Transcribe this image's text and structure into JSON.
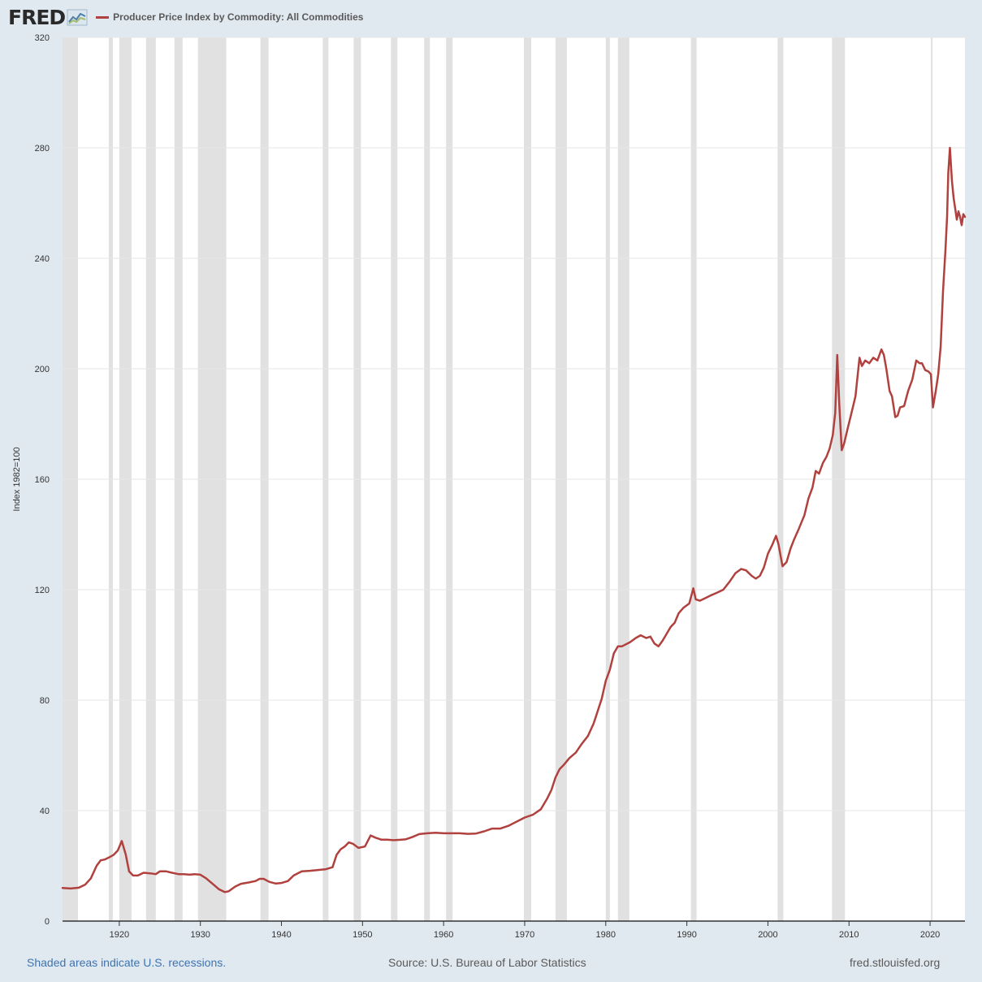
{
  "header": {
    "logo_text": "FRED",
    "logo_icon": "chart-line-icon",
    "series_title": "Producer Price Index by Commodity: All Commodities"
  },
  "footer": {
    "recession_note": "Shaded areas indicate U.S. recessions.",
    "source": "Source: U.S. Bureau of Labor Statistics",
    "site": "fred.stlouisfed.org"
  },
  "colors": {
    "background": "#e1e9f0",
    "plot_background": "#ffffff",
    "series": "#b0413e",
    "recession": "#e1e1e1",
    "grid": "#e6e6e6",
    "link": "#3e73b0"
  },
  "chart_data": {
    "type": "line",
    "title": "Producer Price Index by Commodity: All Commodities",
    "xlabel": "",
    "ylabel": "Index 1982=100",
    "xlim": [
      1913.0,
      2024.3
    ],
    "ylim": [
      0,
      320
    ],
    "yticks": [
      0,
      40,
      80,
      120,
      160,
      200,
      240,
      280,
      320
    ],
    "xticks": [
      1920,
      1930,
      1940,
      1950,
      1960,
      1970,
      1980,
      1990,
      2000,
      2010,
      2020
    ],
    "grid": true,
    "legend_position": "top-left",
    "recessions": [
      [
        1913.0,
        1914.9
      ],
      [
        1918.7,
        1919.2
      ],
      [
        1920.0,
        1921.5
      ],
      [
        1923.3,
        1924.5
      ],
      [
        1926.8,
        1927.8
      ],
      [
        1929.7,
        1933.2
      ],
      [
        1937.4,
        1938.4
      ],
      [
        1945.1,
        1945.8
      ],
      [
        1948.9,
        1949.8
      ],
      [
        1953.5,
        1954.3
      ],
      [
        1957.6,
        1958.3
      ],
      [
        1960.3,
        1961.1
      ],
      [
        1969.9,
        1970.8
      ],
      [
        1973.8,
        1975.2
      ],
      [
        1980.0,
        1980.5
      ],
      [
        1981.5,
        1982.9
      ],
      [
        1990.5,
        1991.2
      ],
      [
        2001.2,
        2001.9
      ],
      [
        2007.9,
        2009.5
      ],
      [
        2020.1,
        2020.3
      ]
    ],
    "series": [
      {
        "name": "Producer Price Index by Commodity: All Commodities",
        "x": [
          1913.0,
          1914.0,
          1915.0,
          1915.8,
          1916.5,
          1917.2,
          1917.7,
          1918.2,
          1918.7,
          1919.3,
          1919.8,
          1920.3,
          1920.8,
          1921.2,
          1921.7,
          1922.3,
          1923.0,
          1923.8,
          1924.5,
          1925.0,
          1925.8,
          1926.5,
          1927.3,
          1928.0,
          1928.7,
          1929.3,
          1930.0,
          1930.7,
          1931.5,
          1932.3,
          1933.0,
          1933.5,
          1934.3,
          1935.0,
          1936.0,
          1936.8,
          1937.3,
          1937.8,
          1938.5,
          1939.3,
          1940.0,
          1940.8,
          1941.5,
          1942.5,
          1943.5,
          1944.5,
          1945.5,
          1946.3,
          1946.8,
          1947.3,
          1947.8,
          1948.3,
          1948.8,
          1949.5,
          1950.3,
          1951.0,
          1951.6,
          1952.3,
          1953.0,
          1953.8,
          1954.5,
          1955.3,
          1956.2,
          1957.0,
          1958.0,
          1959.0,
          1960.0,
          1961.0,
          1962.0,
          1963.0,
          1964.0,
          1965.0,
          1966.0,
          1967.0,
          1968.0,
          1969.0,
          1970.0,
          1971.0,
          1972.0,
          1972.8,
          1973.3,
          1973.8,
          1974.3,
          1974.8,
          1975.5,
          1976.3,
          1977.0,
          1977.8,
          1978.5,
          1979.0,
          1979.5,
          1980.0,
          1980.5,
          1981.0,
          1981.5,
          1982.0,
          1983.0,
          1983.7,
          1984.3,
          1985.0,
          1985.5,
          1986.0,
          1986.5,
          1987.0,
          1987.5,
          1988.0,
          1988.5,
          1989.0,
          1989.6,
          1990.3,
          1990.8,
          1991.1,
          1991.6,
          1992.3,
          1993.0,
          1993.8,
          1994.5,
          1995.3,
          1996.0,
          1996.7,
          1997.3,
          1998.0,
          1998.5,
          1999.0,
          1999.5,
          2000.0,
          2000.5,
          2001.0,
          2001.3,
          2001.8,
          2002.3,
          2002.8,
          2003.2,
          2003.8,
          2004.5,
          2005.0,
          2005.5,
          2005.9,
          2006.3,
          2006.8,
          2007.2,
          2007.6,
          2008.0,
          2008.3,
          2008.55,
          2008.8,
          2009.1,
          2009.4,
          2009.8,
          2010.3,
          2010.8,
          2011.3,
          2011.6,
          2012.0,
          2012.5,
          2013.0,
          2013.5,
          2014.0,
          2014.3,
          2014.6,
          2015.0,
          2015.3,
          2015.7,
          2016.0,
          2016.3,
          2016.8,
          2017.3,
          2017.8,
          2018.3,
          2018.7,
          2019.0,
          2019.4,
          2019.8,
          2020.1,
          2020.35,
          2020.7,
          2021.0,
          2021.3,
          2021.6,
          2021.9,
          2022.1,
          2022.25,
          2022.45,
          2022.7,
          2022.9,
          2023.1,
          2023.3,
          2023.5,
          2023.7,
          2023.9,
          2024.1,
          2024.3
        ],
        "values": [
          12.0,
          11.8,
          12.1,
          13.2,
          15.5,
          20.0,
          22.0,
          22.3,
          23.0,
          24.0,
          25.5,
          29.0,
          24.0,
          18.0,
          16.5,
          16.5,
          17.5,
          17.3,
          17.0,
          18.0,
          18.0,
          17.5,
          17.0,
          17.0,
          16.8,
          17.0,
          16.8,
          15.5,
          13.5,
          11.5,
          10.5,
          10.8,
          12.5,
          13.5,
          14.0,
          14.5,
          15.3,
          15.3,
          14.2,
          13.6,
          13.8,
          14.5,
          16.5,
          18.0,
          18.2,
          18.5,
          18.8,
          19.5,
          24.0,
          26.0,
          27.0,
          28.5,
          28.0,
          26.5,
          27.0,
          31.0,
          30.2,
          29.5,
          29.5,
          29.3,
          29.4,
          29.6,
          30.5,
          31.5,
          31.8,
          32.0,
          31.8,
          31.8,
          31.8,
          31.6,
          31.7,
          32.5,
          33.5,
          33.5,
          34.5,
          36.0,
          37.5,
          38.5,
          40.5,
          44.5,
          47.5,
          52.0,
          55.0,
          56.5,
          59.0,
          61.0,
          64.0,
          67.0,
          71.5,
          76.0,
          80.5,
          87.0,
          91.0,
          97.0,
          99.5,
          99.5,
          101.0,
          102.5,
          103.5,
          102.5,
          103.0,
          100.5,
          99.5,
          101.5,
          104.0,
          106.5,
          108.0,
          111.5,
          113.5,
          115.0,
          120.5,
          116.5,
          116.0,
          117.0,
          118.0,
          119.0,
          120.0,
          123.0,
          126.0,
          127.5,
          127.0,
          125.0,
          124.0,
          125.0,
          128.0,
          133.0,
          136.0,
          139.5,
          136.5,
          128.5,
          130.0,
          135.0,
          138.0,
          142.0,
          147.0,
          153.0,
          157.0,
          163.0,
          162.0,
          166.0,
          168.0,
          171.0,
          176.0,
          184.0,
          205.0,
          187.0,
          170.5,
          173.0,
          178.0,
          184.0,
          190.0,
          204.0,
          201.0,
          203.0,
          202.0,
          204.0,
          203.0,
          207.0,
          205.0,
          200.0,
          192.0,
          190.0,
          182.5,
          183.0,
          186.0,
          186.5,
          192.0,
          196.0,
          203.0,
          202.0,
          202.0,
          199.5,
          199.0,
          198.0,
          186.0,
          192.0,
          198.0,
          208.0,
          228.0,
          243.0,
          255.0,
          271.0,
          280.0,
          268.0,
          262.0,
          258.0,
          254.0,
          257.0,
          255.0,
          252.0,
          256.0,
          255.0
        ]
      }
    ]
  }
}
